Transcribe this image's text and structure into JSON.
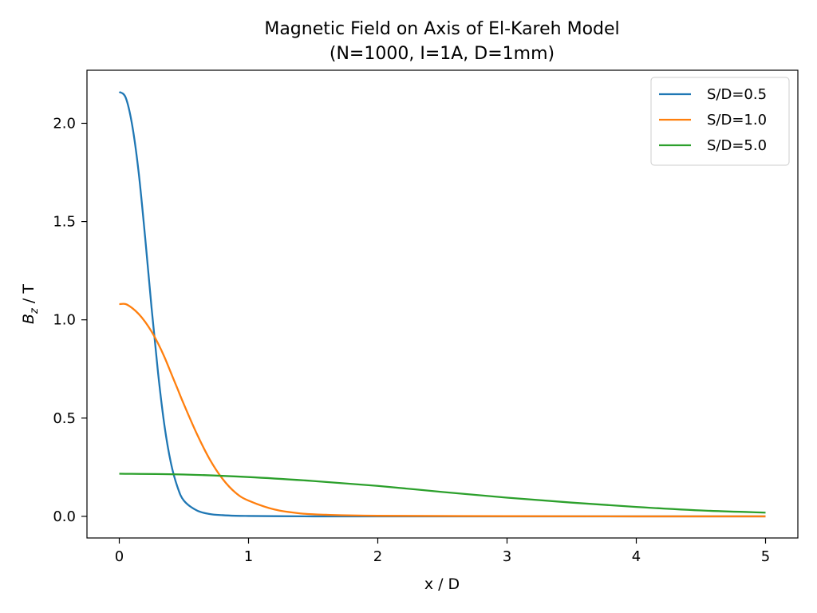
{
  "chart_data": {
    "type": "line",
    "title_line1": "Magnetic Field on Axis of El-Kareh Model",
    "title_line2": "(N=1000, I=1A, D=1mm)",
    "xlabel": "x / D",
    "ylabel_main": "B",
    "ylabel_sub": "z",
    "ylabel_unit": " / T",
    "xlim": [
      -0.25,
      5.25
    ],
    "ylim": [
      -0.11,
      2.27
    ],
    "xticks": [
      {
        "value": 0,
        "label": "0"
      },
      {
        "value": 1,
        "label": "1"
      },
      {
        "value": 2,
        "label": "2"
      },
      {
        "value": 3,
        "label": "3"
      },
      {
        "value": 4,
        "label": "4"
      },
      {
        "value": 5,
        "label": "5"
      }
    ],
    "yticks": [
      {
        "value": 0.0,
        "label": "0.0"
      },
      {
        "value": 0.5,
        "label": "0.5"
      },
      {
        "value": 1.0,
        "label": "1.0"
      },
      {
        "value": 1.5,
        "label": "1.5"
      },
      {
        "value": 2.0,
        "label": "2.0"
      }
    ],
    "grid": false,
    "legend_position": "top-right",
    "series": [
      {
        "name": "S/D=0.5",
        "color": "#1f77b4",
        "x": [
          0,
          0.05,
          0.1,
          0.15,
          0.2,
          0.25,
          0.3,
          0.35,
          0.4,
          0.45,
          0.5,
          0.6,
          0.7,
          0.8,
          0.9,
          1.0,
          1.2,
          1.5,
          2.0,
          3.0,
          4.0,
          5.0
        ],
        "y": [
          2.16,
          2.13,
          1.99,
          1.75,
          1.42,
          1.06,
          0.73,
          0.46,
          0.27,
          0.15,
          0.08,
          0.03,
          0.012,
          0.006,
          0.003,
          0.002,
          0.001,
          0.0,
          0.0,
          0.0,
          0.0,
          0.0
        ]
      },
      {
        "name": "S/D=1.0",
        "color": "#ff7f0e",
        "x": [
          0,
          0.05,
          0.1,
          0.15,
          0.2,
          0.25,
          0.3,
          0.35,
          0.4,
          0.45,
          0.5,
          0.6,
          0.7,
          0.8,
          0.9,
          1.0,
          1.2,
          1.4,
          1.6,
          2.0,
          3.0,
          4.0,
          5.0
        ],
        "y": [
          1.08,
          1.08,
          1.06,
          1.03,
          0.99,
          0.94,
          0.88,
          0.81,
          0.73,
          0.65,
          0.57,
          0.42,
          0.29,
          0.19,
          0.12,
          0.08,
          0.035,
          0.015,
          0.008,
          0.003,
          0.001,
          0.0,
          0.0
        ]
      },
      {
        "name": "S/D=5.0",
        "color": "#2ca02c",
        "x": [
          0,
          0.5,
          1.0,
          1.5,
          2.0,
          2.5,
          3.0,
          3.5,
          4.0,
          4.5,
          5.0
        ],
        "y": [
          0.217,
          0.213,
          0.2,
          0.18,
          0.155,
          0.124,
          0.095,
          0.07,
          0.048,
          0.03,
          0.019
        ]
      }
    ]
  }
}
